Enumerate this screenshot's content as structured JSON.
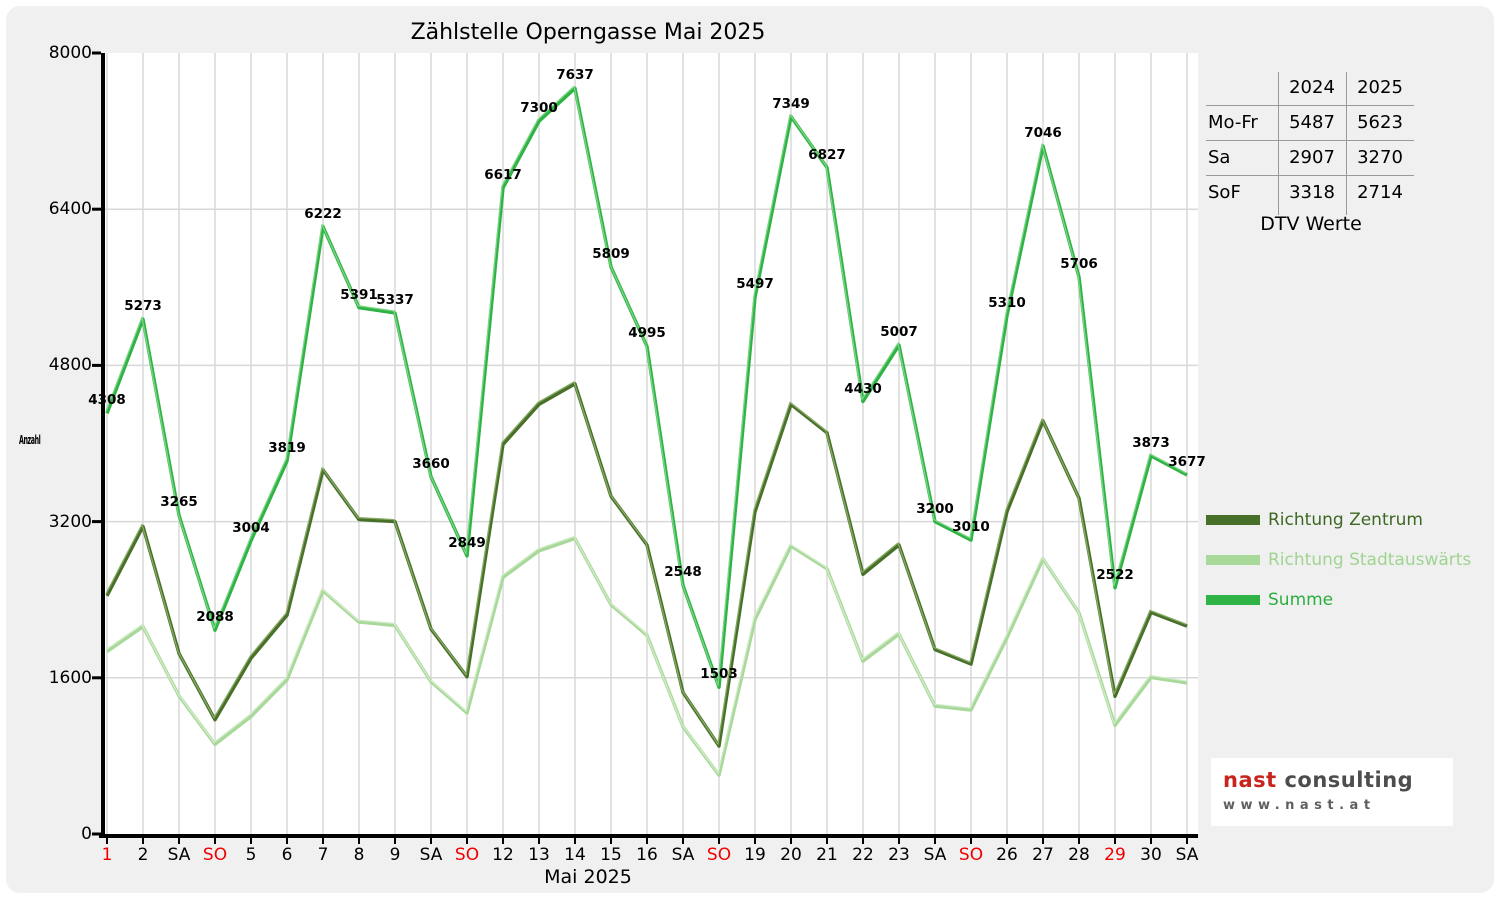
{
  "title": "Zählstelle Operngasse Mai 2025",
  "x_axis_title": "Mai 2025",
  "y_axis_label": "Anzahl",
  "colors": {
    "holiday_red": "#ee0000",
    "grid": "#d8d8d8",
    "axis": "#000000",
    "panel_bg": "#f0f0f0",
    "plot_bg": "#ffffff"
  },
  "chart_data": {
    "type": "line",
    "title": "Zählstelle Operngasse Mai 2025",
    "xlabel": "Mai 2025",
    "ylabel": "Anzahl",
    "ylim": [
      0,
      8000
    ],
    "y_ticks": [
      0,
      1600,
      3200,
      4800,
      6400,
      8000
    ],
    "grid": true,
    "legend_position": "right",
    "x_tick_labels": [
      {
        "label": "1",
        "red": true
      },
      {
        "label": "2"
      },
      {
        "label": "SA"
      },
      {
        "label": "SO",
        "red": true
      },
      {
        "label": "5"
      },
      {
        "label": "6"
      },
      {
        "label": "7"
      },
      {
        "label": "8"
      },
      {
        "label": "9"
      },
      {
        "label": "SA"
      },
      {
        "label": "SO",
        "red": true
      },
      {
        "label": "12"
      },
      {
        "label": "13"
      },
      {
        "label": "14"
      },
      {
        "label": "15"
      },
      {
        "label": "16"
      },
      {
        "label": "SA"
      },
      {
        "label": "SO",
        "red": true
      },
      {
        "label": "19"
      },
      {
        "label": "20"
      },
      {
        "label": "21"
      },
      {
        "label": "22"
      },
      {
        "label": "23"
      },
      {
        "label": "SA"
      },
      {
        "label": "SO",
        "red": true
      },
      {
        "label": "26"
      },
      {
        "label": "27"
      },
      {
        "label": "28"
      },
      {
        "label": "29",
        "red": true
      },
      {
        "label": "30"
      },
      {
        "label": "SA"
      }
    ],
    "series": [
      {
        "key": "stadtauswaerts",
        "name": "Richtung Stadtauswärts",
        "color": "#a9d89b",
        "highlight": "#d2ecc8",
        "labeled": false,
        "values": [
          1868,
          2123,
          1415,
          918,
          1204,
          1579,
          2492,
          2171,
          2137,
          1560,
          1239,
          2627,
          2900,
          3027,
          2349,
          2035,
          1098,
          603,
          2197,
          2949,
          2717,
          1770,
          2047,
          1310,
          1270,
          2010,
          2816,
          2266,
          1112,
          1603,
          1547
        ]
      },
      {
        "key": "zentrum",
        "name": "Richtung Zentrum",
        "color": "#48702a",
        "highlight": "#86ab63",
        "labeled": false,
        "values": [
          2440,
          3150,
          1850,
          1170,
          1800,
          2240,
          3730,
          3220,
          3200,
          2100,
          1610,
          3990,
          4400,
          4610,
          3460,
          2960,
          1450,
          900,
          3300,
          4400,
          4110,
          2660,
          2960,
          1890,
          1740,
          3300,
          4230,
          3440,
          1410,
          2270,
          2130
        ]
      },
      {
        "key": "summe",
        "name": "Summe",
        "color": "#2fb344",
        "highlight": "#7bd586",
        "labeled": true,
        "values": [
          4308,
          5273,
          3265,
          2088,
          3004,
          3819,
          6222,
          5391,
          5337,
          3660,
          2849,
          6617,
          7300,
          7637,
          5809,
          4995,
          2548,
          1503,
          5497,
          7349,
          6827,
          4430,
          5007,
          3200,
          3010,
          5310,
          7046,
          5706,
          2522,
          3873,
          3677
        ]
      }
    ]
  },
  "legend": {
    "items": [
      {
        "label": "Richtung Zentrum",
        "color": "#48702a",
        "text_color": "#3c6823"
      },
      {
        "label": "Richtung Stadtauswärts",
        "color": "#a9d89b",
        "text_color": "#9fd491"
      },
      {
        "label": "Summe",
        "color": "#2fb344",
        "text_color": "#2aaf3e"
      }
    ]
  },
  "table": {
    "columns": [
      "2024",
      "2025"
    ],
    "rows": [
      {
        "label": "Mo-Fr",
        "values": [
          "5487",
          "5623"
        ]
      },
      {
        "label": "Sa",
        "values": [
          "2907",
          "3270"
        ]
      },
      {
        "label": "SoF",
        "values": [
          "3318",
          "2714"
        ]
      }
    ],
    "caption": "DTV Werte"
  },
  "logo": {
    "brand_primary": "nast",
    "brand_secondary": " consulting",
    "url": "www.nast.at"
  }
}
